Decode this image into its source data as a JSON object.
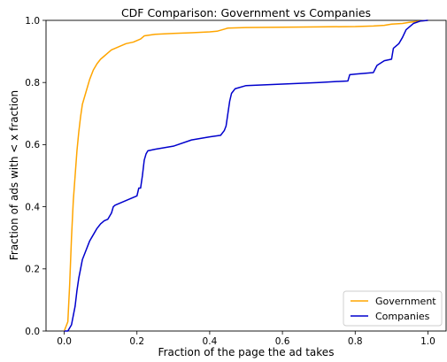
{
  "chart_data": {
    "type": "line",
    "title": "CDF Comparison: Government vs Companies",
    "xlabel": "Fraction of the page the ad takes",
    "ylabel": "Fraction of ads with < x fraction",
    "xlim": [
      -0.05,
      1.05
    ],
    "ylim": [
      0.0,
      1.0
    ],
    "xticks": [
      0.0,
      0.2,
      0.4,
      0.6,
      0.8,
      1.0
    ],
    "xtick_labels": [
      "0.0",
      "0.2",
      "0.4",
      "0.6",
      "0.8",
      "1.0"
    ],
    "yticks": [
      0.0,
      0.2,
      0.4,
      0.6,
      0.8,
      1.0
    ],
    "ytick_labels": [
      "0.0",
      "0.2",
      "0.4",
      "0.6",
      "0.8",
      "1.0"
    ],
    "grid": false,
    "legend_position": "lower-right",
    "series": [
      {
        "name": "Government",
        "color": "#FFA500",
        "x": [
          0.0,
          0.01,
          0.015,
          0.02,
          0.025,
          0.03,
          0.035,
          0.04,
          0.045,
          0.05,
          0.06,
          0.07,
          0.08,
          0.09,
          0.1,
          0.11,
          0.12,
          0.13,
          0.15,
          0.17,
          0.19,
          0.2,
          0.21,
          0.22,
          0.25,
          0.3,
          0.35,
          0.4,
          0.42,
          0.45,
          0.5,
          0.6,
          0.7,
          0.8,
          0.85,
          0.88,
          0.9,
          0.93,
          0.95,
          0.98,
          1.0
        ],
        "y": [
          0.0,
          0.03,
          0.15,
          0.3,
          0.42,
          0.5,
          0.58,
          0.64,
          0.69,
          0.73,
          0.77,
          0.81,
          0.84,
          0.86,
          0.875,
          0.885,
          0.895,
          0.905,
          0.915,
          0.925,
          0.93,
          0.935,
          0.94,
          0.95,
          0.955,
          0.958,
          0.96,
          0.963,
          0.965,
          0.975,
          0.977,
          0.978,
          0.979,
          0.98,
          0.982,
          0.984,
          0.988,
          0.99,
          0.994,
          0.998,
          1.0
        ]
      },
      {
        "name": "Companies",
        "color": "#0000CD",
        "x": [
          0.0,
          0.01,
          0.02,
          0.025,
          0.03,
          0.035,
          0.04,
          0.045,
          0.05,
          0.06,
          0.07,
          0.08,
          0.09,
          0.1,
          0.11,
          0.12,
          0.13,
          0.135,
          0.14,
          0.16,
          0.18,
          0.2,
          0.205,
          0.21,
          0.215,
          0.22,
          0.225,
          0.23,
          0.25,
          0.3,
          0.35,
          0.4,
          0.43,
          0.44,
          0.445,
          0.45,
          0.455,
          0.46,
          0.47,
          0.5,
          0.6,
          0.7,
          0.78,
          0.785,
          0.8,
          0.85,
          0.86,
          0.88,
          0.9,
          0.905,
          0.92,
          0.93,
          0.94,
          0.96,
          0.98,
          1.0
        ],
        "y": [
          0.0,
          0.0,
          0.02,
          0.05,
          0.08,
          0.13,
          0.17,
          0.2,
          0.23,
          0.26,
          0.29,
          0.31,
          0.33,
          0.345,
          0.355,
          0.36,
          0.38,
          0.4,
          0.405,
          0.415,
          0.425,
          0.435,
          0.46,
          0.46,
          0.5,
          0.55,
          0.57,
          0.58,
          0.585,
          0.595,
          0.615,
          0.625,
          0.63,
          0.645,
          0.66,
          0.7,
          0.74,
          0.765,
          0.78,
          0.79,
          0.795,
          0.8,
          0.805,
          0.825,
          0.827,
          0.832,
          0.855,
          0.87,
          0.875,
          0.91,
          0.925,
          0.945,
          0.97,
          0.99,
          0.998,
          1.0
        ]
      }
    ]
  }
}
